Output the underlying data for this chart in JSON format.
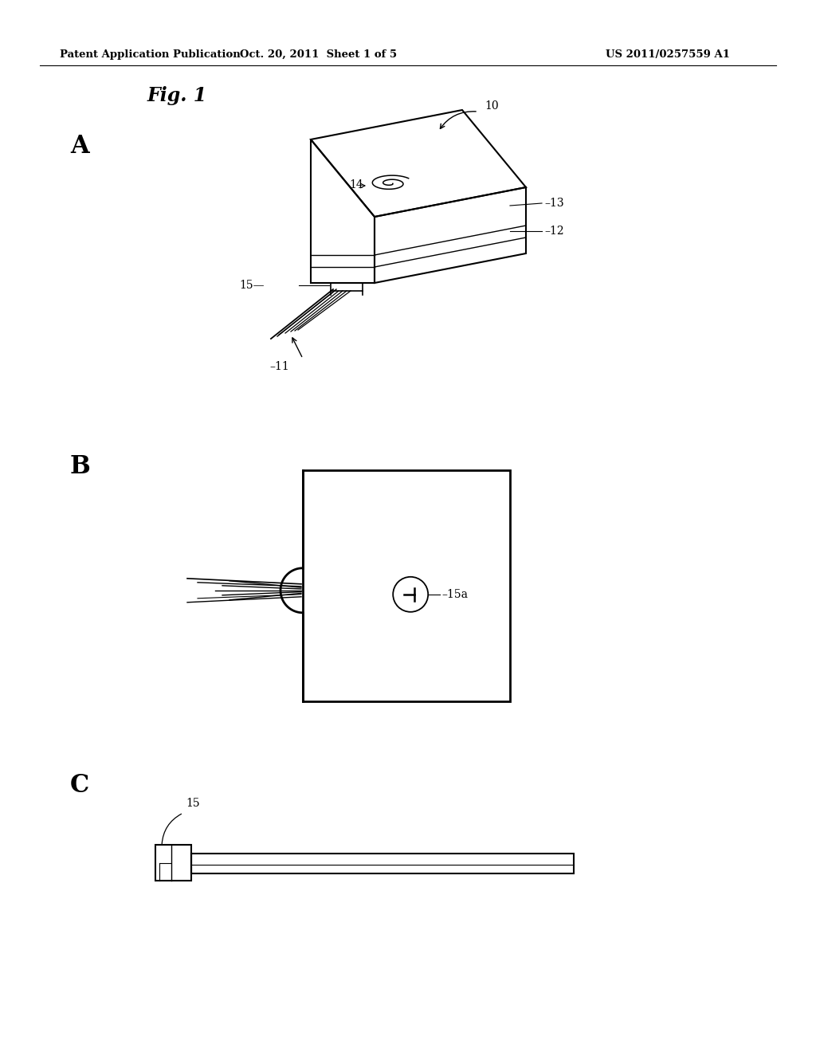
{
  "bg_color": "#ffffff",
  "header_text": "Patent Application Publication",
  "header_date": "Oct. 20, 2011  Sheet 1 of 5",
  "header_patent": "US 2011/0257559 A1",
  "fig_label": "Fig. 1",
  "label_A": "A",
  "label_B": "B",
  "label_C": "C"
}
